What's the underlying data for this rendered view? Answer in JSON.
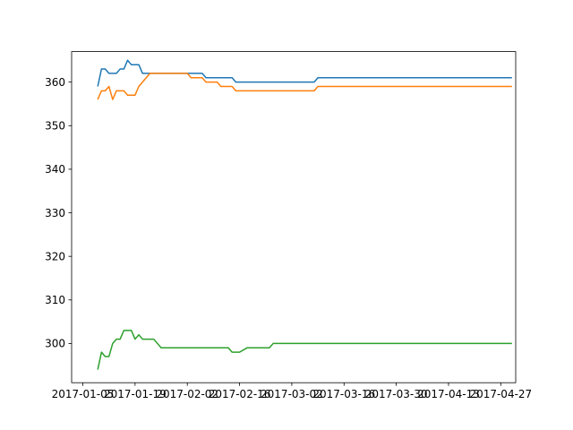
{
  "chart_data": {
    "type": "line",
    "title": "",
    "xlabel": "",
    "ylabel": "",
    "grid": false,
    "legend": "none",
    "x_range": [
      "2017-01-02",
      "2017-05-01"
    ],
    "y_range": [
      291,
      367
    ],
    "x_ticks": [
      "2017-01-05",
      "2017-01-19",
      "2017-02-02",
      "2017-02-16",
      "2017-03-02",
      "2017-03-16",
      "2017-03-30",
      "2017-04-13",
      "2017-04-27"
    ],
    "y_ticks": [
      300,
      310,
      320,
      330,
      340,
      350,
      360
    ],
    "series": [
      {
        "color": "#1f77b4",
        "points": [
          [
            "2017-01-09",
            359
          ],
          [
            "2017-01-10",
            363
          ],
          [
            "2017-01-11",
            363
          ],
          [
            "2017-01-12",
            362
          ],
          [
            "2017-01-13",
            362
          ],
          [
            "2017-01-14",
            362
          ],
          [
            "2017-01-15",
            363
          ],
          [
            "2017-01-16",
            363
          ],
          [
            "2017-01-17",
            365
          ],
          [
            "2017-01-18",
            364
          ],
          [
            "2017-01-19",
            364
          ],
          [
            "2017-01-20",
            364
          ],
          [
            "2017-01-21",
            362
          ],
          [
            "2017-01-23",
            362
          ],
          [
            "2017-01-30",
            362
          ],
          [
            "2017-02-06",
            362
          ],
          [
            "2017-02-07",
            361
          ],
          [
            "2017-02-14",
            361
          ],
          [
            "2017-02-15",
            360
          ],
          [
            "2017-03-08",
            360
          ],
          [
            "2017-03-09",
            361
          ],
          [
            "2017-04-30",
            361
          ]
        ]
      },
      {
        "color": "#ff7f0e",
        "points": [
          [
            "2017-01-09",
            356
          ],
          [
            "2017-01-10",
            358
          ],
          [
            "2017-01-11",
            358
          ],
          [
            "2017-01-12",
            359
          ],
          [
            "2017-01-13",
            356
          ],
          [
            "2017-01-14",
            358
          ],
          [
            "2017-01-16",
            358
          ],
          [
            "2017-01-17",
            357
          ],
          [
            "2017-01-19",
            357
          ],
          [
            "2017-01-20",
            359
          ],
          [
            "2017-01-22",
            361
          ],
          [
            "2017-01-23",
            362
          ],
          [
            "2017-02-02",
            362
          ],
          [
            "2017-02-03",
            361
          ],
          [
            "2017-02-06",
            361
          ],
          [
            "2017-02-07",
            360
          ],
          [
            "2017-02-10",
            360
          ],
          [
            "2017-02-11",
            359
          ],
          [
            "2017-02-14",
            359
          ],
          [
            "2017-02-15",
            358
          ],
          [
            "2017-03-08",
            358
          ],
          [
            "2017-03-09",
            359
          ],
          [
            "2017-04-30",
            359
          ]
        ]
      },
      {
        "color": "#2ca02c",
        "points": [
          [
            "2017-01-09",
            294
          ],
          [
            "2017-01-10",
            298
          ],
          [
            "2017-01-11",
            297
          ],
          [
            "2017-01-12",
            297
          ],
          [
            "2017-01-13",
            300
          ],
          [
            "2017-01-14",
            301
          ],
          [
            "2017-01-15",
            301
          ],
          [
            "2017-01-16",
            303
          ],
          [
            "2017-01-18",
            303
          ],
          [
            "2017-01-19",
            301
          ],
          [
            "2017-01-20",
            302
          ],
          [
            "2017-01-21",
            301
          ],
          [
            "2017-01-24",
            301
          ],
          [
            "2017-01-25",
            300
          ],
          [
            "2017-01-26",
            299
          ],
          [
            "2017-02-13",
            299
          ],
          [
            "2017-02-14",
            298
          ],
          [
            "2017-02-16",
            298
          ],
          [
            "2017-02-18",
            299
          ],
          [
            "2017-02-24",
            299
          ],
          [
            "2017-02-25",
            300
          ],
          [
            "2017-04-30",
            300
          ]
        ]
      }
    ]
  }
}
